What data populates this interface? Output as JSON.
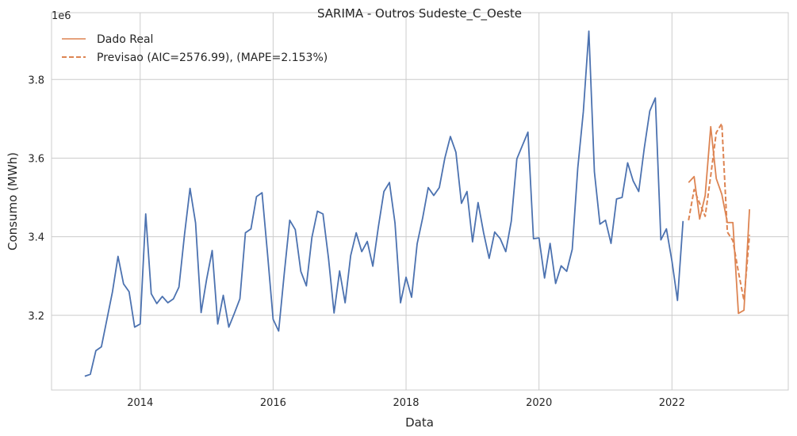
{
  "chart_data": {
    "type": "line",
    "title": "SARIMA - Outros Sudeste_C_Oeste",
    "xlabel": "Data",
    "ylabel": "Consumo (MWh)",
    "y_offset_label": "1e6",
    "xlim": [
      "2012-09-01",
      "2023-10-01"
    ],
    "ylim": [
      3.01,
      3.97
    ],
    "x_ticks": [
      "2014",
      "2016",
      "2018",
      "2020",
      "2022"
    ],
    "y_ticks": [
      3.2,
      3.4,
      3.6,
      3.8
    ],
    "grid": true,
    "legend_position": "top-left",
    "colors": {
      "train": "#4c72b0",
      "real": "#dd8452",
      "forecast": "#dd8452"
    },
    "series": [
      {
        "name": "",
        "role": "train",
        "x": [
          "2013-03",
          "2013-04",
          "2013-05",
          "2013-06",
          "2013-07",
          "2013-08",
          "2013-09",
          "2013-10",
          "2013-11",
          "2013-12",
          "2014-01",
          "2014-02",
          "2014-03",
          "2014-04",
          "2014-05",
          "2014-06",
          "2014-07",
          "2014-08",
          "2014-09",
          "2014-10",
          "2014-11",
          "2014-12",
          "2015-01",
          "2015-02",
          "2015-03",
          "2015-04",
          "2015-05",
          "2015-06",
          "2015-07",
          "2015-08",
          "2015-09",
          "2015-10",
          "2015-11",
          "2015-12",
          "2016-01",
          "2016-02",
          "2016-03",
          "2016-04",
          "2016-05",
          "2016-06",
          "2016-07",
          "2016-08",
          "2016-09",
          "2016-10",
          "2016-11",
          "2016-12",
          "2017-01",
          "2017-02",
          "2017-03",
          "2017-04",
          "2017-05",
          "2017-06",
          "2017-07",
          "2017-08",
          "2017-09",
          "2017-10",
          "2017-11",
          "2017-12",
          "2018-01",
          "2018-02",
          "2018-03",
          "2018-04",
          "2018-05",
          "2018-06",
          "2018-07",
          "2018-08",
          "2018-09",
          "2018-10",
          "2018-11",
          "2018-12",
          "2019-01",
          "2019-02",
          "2019-03",
          "2019-04",
          "2019-05",
          "2019-06",
          "2019-07",
          "2019-08",
          "2019-09",
          "2019-10",
          "2019-11",
          "2019-12",
          "2020-01",
          "2020-02",
          "2020-03",
          "2020-04",
          "2020-05",
          "2020-06",
          "2020-07",
          "2020-08",
          "2020-09",
          "2020-10",
          "2020-11",
          "2020-12",
          "2021-01",
          "2021-02",
          "2021-03",
          "2021-04",
          "2021-05",
          "2021-06",
          "2021-07",
          "2021-08",
          "2021-09",
          "2021-10",
          "2021-11",
          "2021-12",
          "2022-01",
          "2022-02",
          "2022-03"
        ],
        "values": [
          3.045,
          3.05,
          3.11,
          3.12,
          3.19,
          3.26,
          3.35,
          3.28,
          3.26,
          3.17,
          3.178,
          3.458,
          3.255,
          3.23,
          3.248,
          3.232,
          3.242,
          3.272,
          3.405,
          3.523,
          3.435,
          3.207,
          3.292,
          3.365,
          3.178,
          3.251,
          3.17,
          3.205,
          3.242,
          3.41,
          3.42,
          3.502,
          3.512,
          3.355,
          3.19,
          3.16,
          3.305,
          3.442,
          3.418,
          3.312,
          3.275,
          3.398,
          3.465,
          3.458,
          3.345,
          3.206,
          3.313,
          3.232,
          3.352,
          3.41,
          3.362,
          3.388,
          3.325,
          3.425,
          3.515,
          3.538,
          3.435,
          3.232,
          3.297,
          3.246,
          3.382,
          3.448,
          3.525,
          3.505,
          3.525,
          3.6,
          3.655,
          3.615,
          3.485,
          3.515,
          3.387,
          3.487,
          3.41,
          3.345,
          3.412,
          3.395,
          3.362,
          3.44,
          3.598,
          3.632,
          3.666,
          3.395,
          3.397,
          3.295,
          3.383,
          3.281,
          3.326,
          3.312,
          3.368,
          3.575,
          3.718,
          3.923,
          3.565,
          3.432,
          3.442,
          3.383,
          3.496,
          3.5,
          3.588,
          3.542,
          3.515,
          3.625,
          3.72,
          3.753,
          3.392,
          3.42,
          3.338,
          3.238,
          3.44
        ]
      },
      {
        "name": "Dado Real",
        "role": "real",
        "x": [
          "2022-04",
          "2022-05",
          "2022-06",
          "2022-07",
          "2022-08",
          "2022-09",
          "2022-10",
          "2022-11",
          "2022-12",
          "2023-01",
          "2023-02",
          "2023-03"
        ],
        "values": [
          3.538,
          3.553,
          3.445,
          3.505,
          3.68,
          3.548,
          3.508,
          3.436,
          3.436,
          3.205,
          3.213,
          3.47
        ]
      },
      {
        "name": "Previsao (AIC=2576.99), (MAPE=2.153%)",
        "role": "forecast",
        "x": [
          "2022-04",
          "2022-05",
          "2022-06",
          "2022-07",
          "2022-08",
          "2022-09",
          "2022-10",
          "2022-11",
          "2022-12",
          "2023-01",
          "2023-02",
          "2023-03"
        ],
        "values": [
          3.442,
          3.52,
          3.485,
          3.452,
          3.555,
          3.665,
          3.688,
          3.412,
          3.39,
          3.31,
          3.238,
          3.405
        ]
      }
    ]
  }
}
